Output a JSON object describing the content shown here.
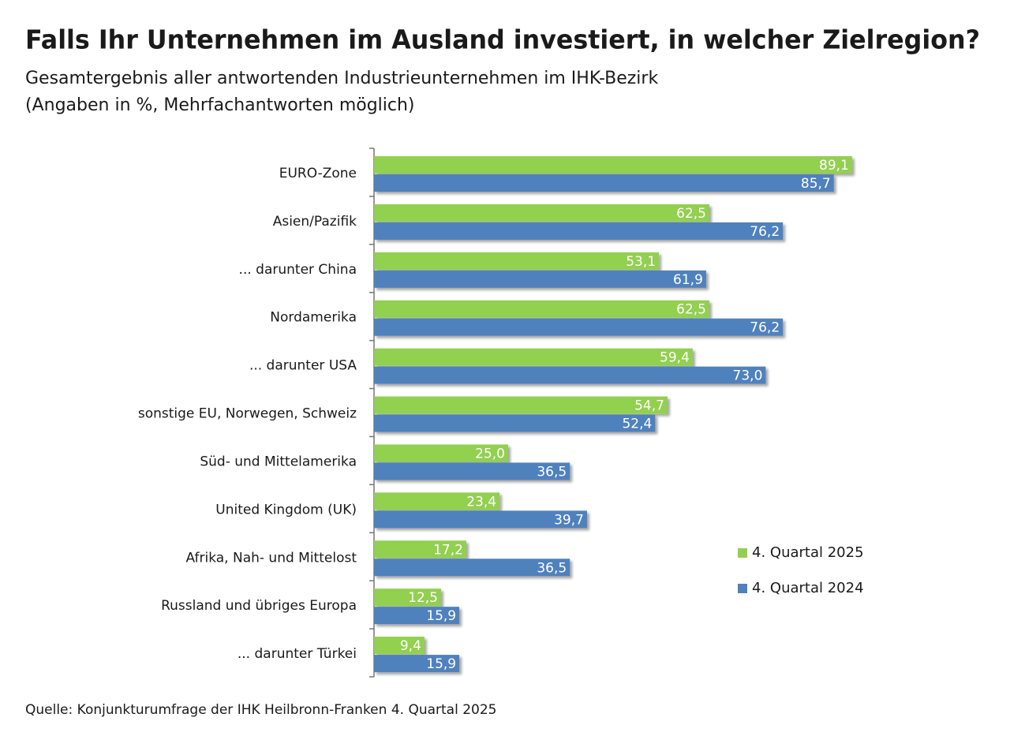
{
  "chart_data": {
    "type": "bar",
    "orientation": "horizontal",
    "title": "Falls Ihr Unternehmen im Ausland investiert, in welcher Zielregion?",
    "subtitle": "Gesamtergebnis aller antwortenden Industrieunternehmen im IHK-Bezirk",
    "note": "(Angaben in %, Mehrfachantworten möglich)",
    "source": "Quelle: Konjunkturumfrage der IHK Heilbronn-Franken 4. Quartal 2025",
    "categories": [
      "EURO-Zone",
      "Asien/Pazifik",
      "... darunter China",
      "Nordamerika",
      "... darunter USA",
      "sonstige EU, Norwegen, Schweiz",
      "Süd- und Mittelamerika",
      "United Kingdom (UK)",
      "Afrika, Nah- und Mittelost",
      "Russland und übriges Europa",
      "... darunter Türkei"
    ],
    "series": [
      {
        "name": "4. Quartal 2025",
        "color": "#92d050",
        "values": [
          89.1,
          62.5,
          53.1,
          62.5,
          59.4,
          54.7,
          25.0,
          23.4,
          17.2,
          12.5,
          9.4
        ],
        "value_labels": [
          "89,1",
          "62,5",
          "53,1",
          "62,5",
          "59,4",
          "54,7",
          "25,0",
          "23,4",
          "17,2",
          "12,5",
          "9,4"
        ]
      },
      {
        "name": "4. Quartal 2024",
        "color": "#4f81bd",
        "values": [
          85.7,
          76.2,
          61.9,
          76.2,
          73.0,
          52.4,
          36.5,
          39.7,
          36.5,
          15.9,
          15.9
        ],
        "value_labels": [
          "85,7",
          "76,2",
          "61,9",
          "76,2",
          "73,0",
          "52,4",
          "36,5",
          "39,7",
          "36,5",
          "15,9",
          "15,9"
        ]
      }
    ],
    "xlim": [
      0,
      100
    ],
    "legend": "right"
  }
}
